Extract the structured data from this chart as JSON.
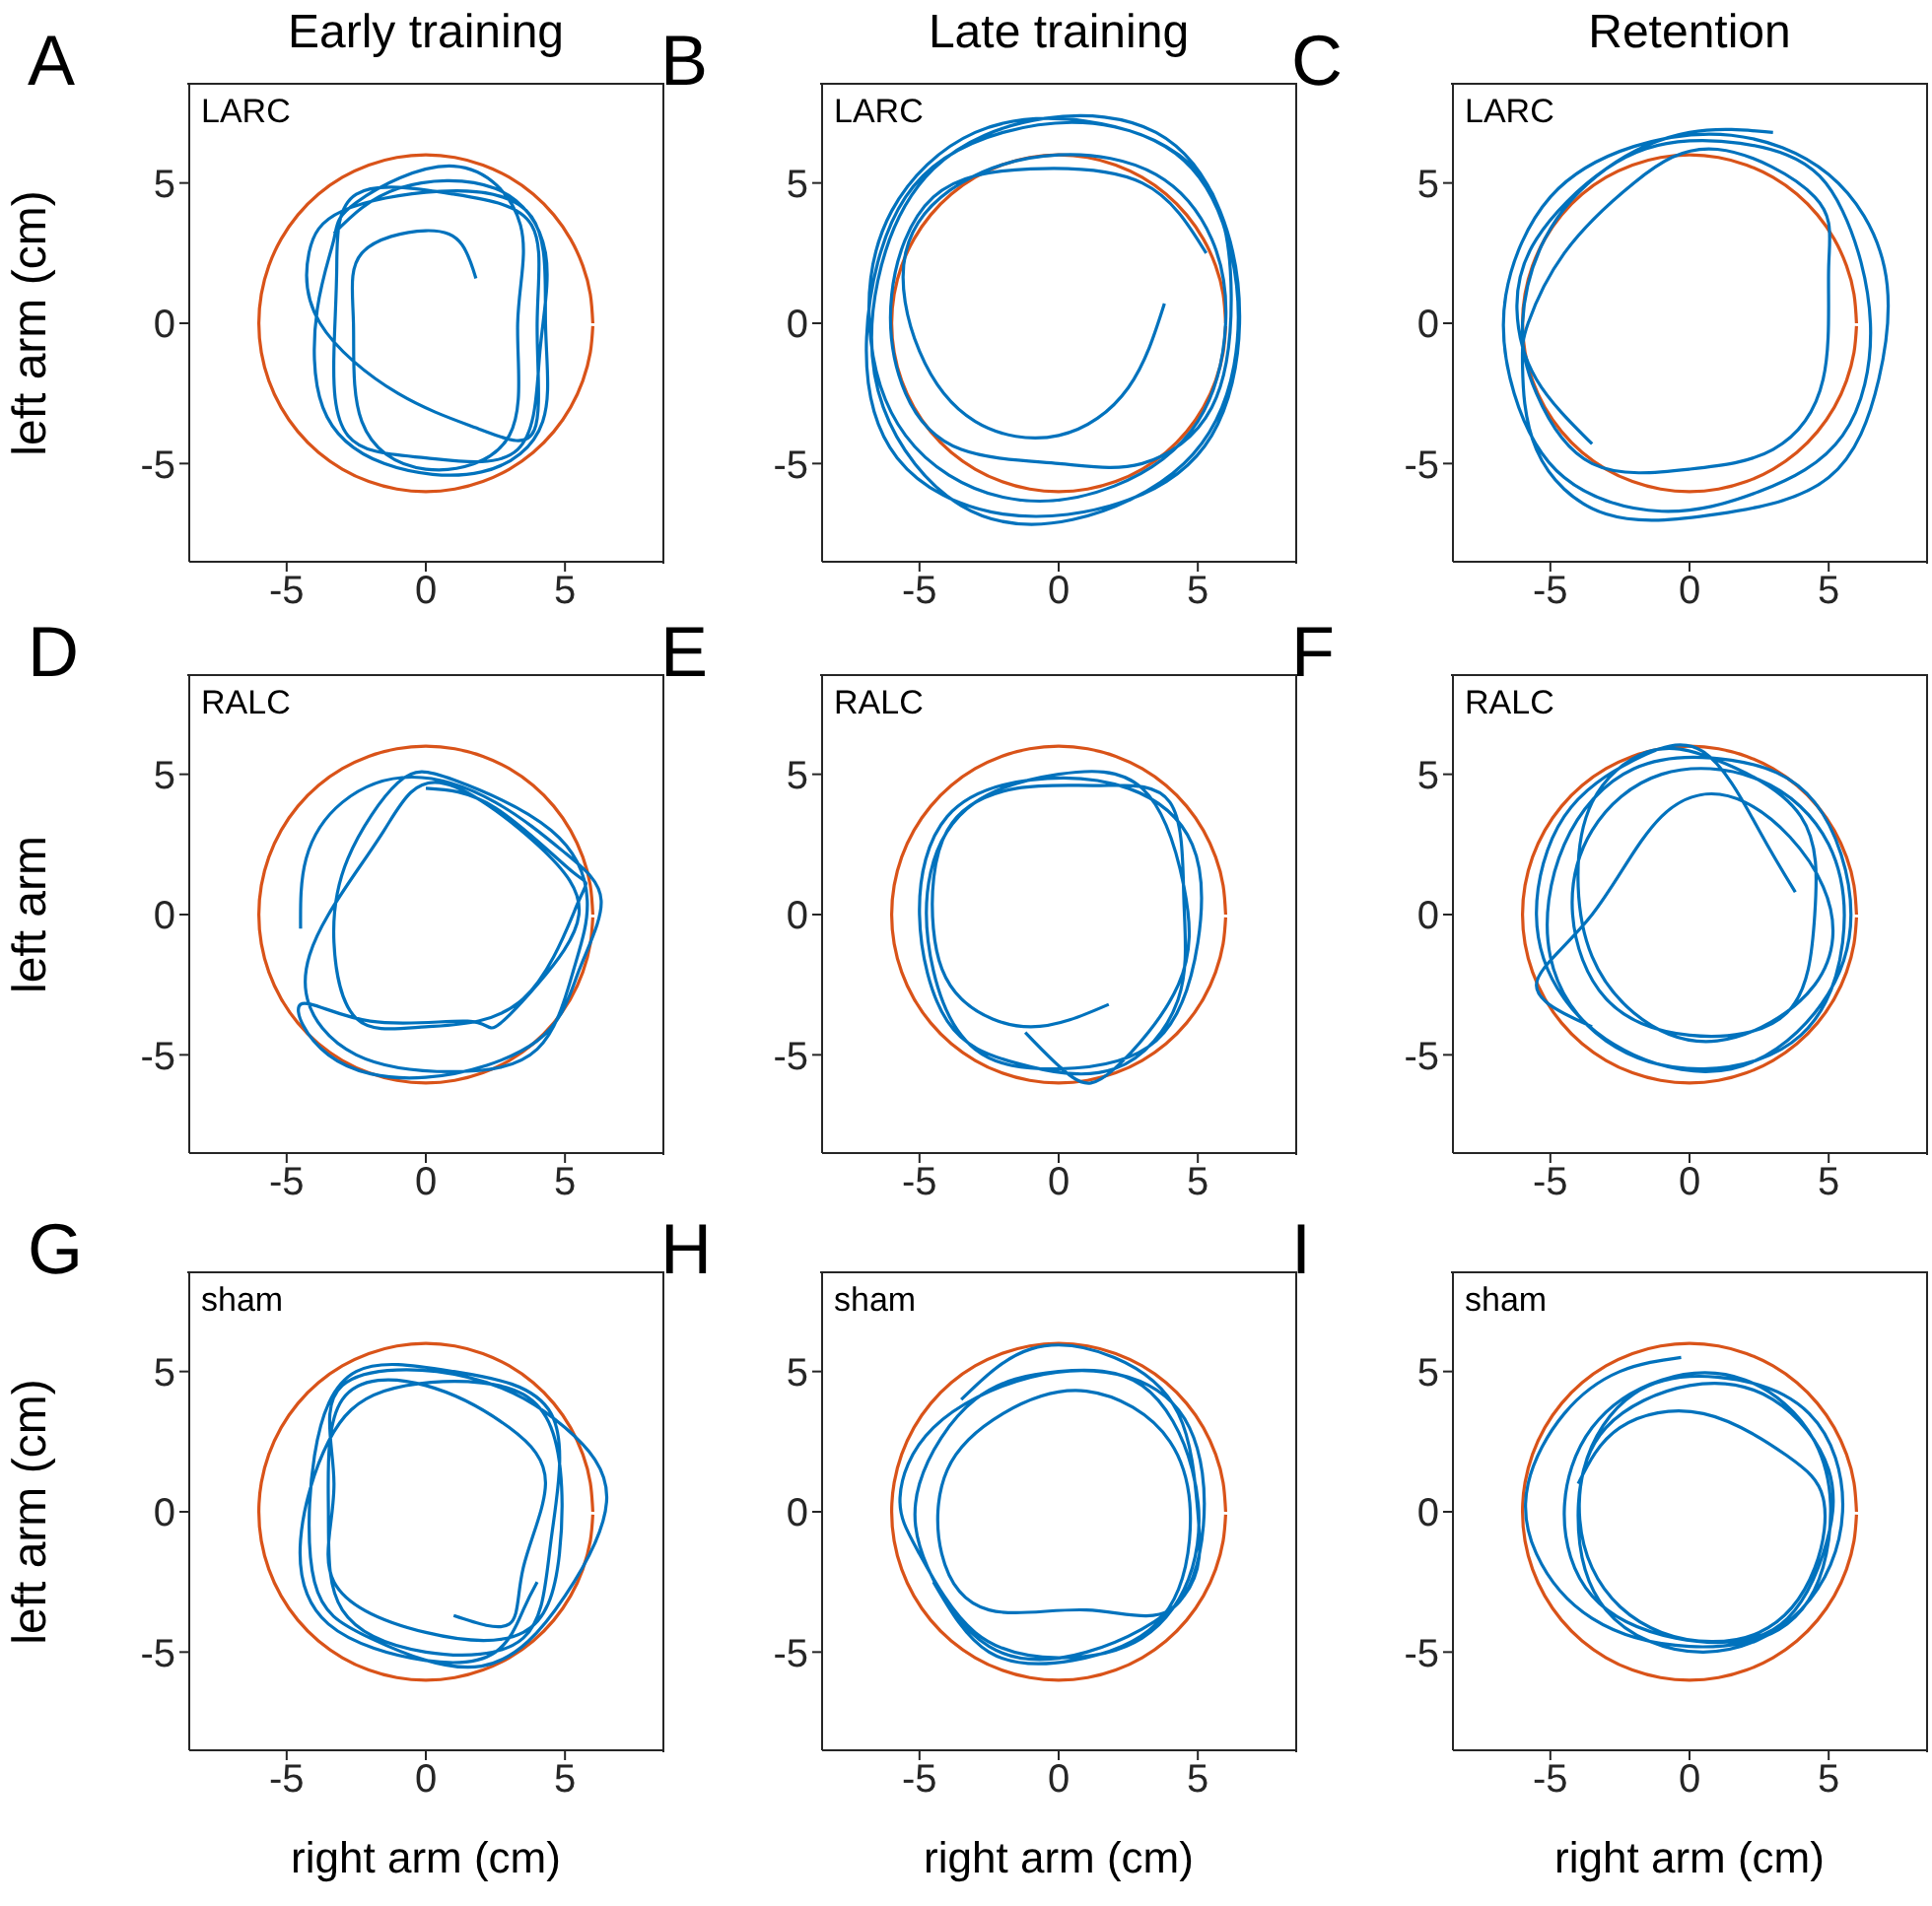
{
  "chart_data": [
    {
      "type": "line",
      "title": "Early training",
      "ylabel": "left arm (cm)",
      "annotations": [
        "A",
        "LARC"
      ],
      "xlim": [
        -8.5,
        8.5
      ],
      "ylim": [
        -8.5,
        8.5
      ],
      "xticks": [
        -5,
        0,
        5
      ],
      "yticks": [
        -5,
        0,
        5
      ],
      "series": [
        {
          "color": "#d95319",
          "x": [
            6,
            5.91,
            5.64,
            5.2,
            4.6,
            3.86,
            3,
            2.05,
            1.04,
            0,
            -1.04,
            -2.05,
            -3,
            -3.86,
            -4.6,
            -5.2,
            -5.64,
            -5.91,
            -6,
            -5.91,
            -5.64,
            -5.2,
            -4.6,
            -3.86,
            -3,
            -2.05,
            -1.04,
            0,
            1.04,
            2.05,
            3,
            3.86,
            4.6,
            5.2,
            5.64,
            5.91,
            6
          ],
          "values": [
            0,
            1.04,
            2.05,
            3,
            3.86,
            4.6,
            5.2,
            5.64,
            5.91,
            6,
            5.91,
            5.64,
            5.2,
            4.6,
            3.86,
            3,
            2.05,
            1.04,
            0,
            -1.04,
            -2.05,
            -3,
            -3.86,
            -4.6,
            -5.2,
            -5.64,
            -5.91,
            -6,
            -5.91,
            -5.64,
            -5.2,
            -4.6,
            -3.86,
            -3,
            -2.05,
            -1.04,
            -0.1
          ]
        },
        {
          "color": "#0072bd",
          "x": [
            1.8,
            1.3,
            0,
            -2.3,
            -2.6,
            -2.3,
            0,
            3,
            3.3,
            3.4,
            1,
            -2.5,
            -3.3,
            -3.9,
            -3.7,
            -1.5,
            2,
            4.2,
            4.3,
            3.8,
            0.5,
            -3,
            -4.2,
            -3.8,
            -1,
            2,
            3.9,
            4,
            3.8,
            1,
            -2.5,
            -3.2,
            -3.3,
            -2.8,
            0,
            3.3,
            4.1,
            4.3,
            2.5,
            -1,
            -3.3
          ],
          "values": [
            1.6,
            2.8,
            3.3,
            2.5,
            0,
            -3.5,
            -5.2,
            -4,
            0,
            3.5,
            5.6,
            4.3,
            3,
            0.5,
            -3,
            -5,
            -5.3,
            -3.5,
            0,
            3.8,
            4.7,
            4,
            2.5,
            0,
            -2.5,
            -3.8,
            -3.8,
            0,
            3.5,
            4.6,
            4.6,
            2,
            -1,
            -4,
            -4.8,
            -4.5,
            -1,
            2.5,
            4.8,
            4.8,
            3.2
          ]
        }
      ]
    },
    {
      "type": "line",
      "title": "Late training",
      "annotations": [
        "B",
        "LARC"
      ],
      "xlim": [
        -8.5,
        8.5
      ],
      "ylim": [
        -8.5,
        8.5
      ],
      "xticks": [
        -5,
        0,
        5
      ],
      "yticks": [
        -5,
        0,
        5
      ],
      "series": [
        {
          "color": "#d95319",
          "x": [
            6,
            5.91,
            5.64,
            5.2,
            4.6,
            3.86,
            3,
            2.05,
            1.04,
            0,
            -1.04,
            -2.05,
            -3,
            -3.86,
            -4.6,
            -5.2,
            -5.64,
            -5.91,
            -6,
            -5.91,
            -5.64,
            -5.2,
            -4.6,
            -3.86,
            -3,
            -2.05,
            -1.04,
            0,
            1.04,
            2.05,
            3,
            3.86,
            4.6,
            5.2,
            5.64,
            5.91,
            6
          ],
          "values": [
            0,
            1.04,
            2.05,
            3,
            3.86,
            4.6,
            5.2,
            5.64,
            5.91,
            6,
            5.91,
            5.64,
            5.2,
            4.6,
            3.86,
            3,
            2.05,
            1.04,
            0,
            -1.04,
            -2.05,
            -3,
            -3.86,
            -4.6,
            -5.2,
            -5.64,
            -5.91,
            -6,
            -5.91,
            -5.64,
            -5.2,
            -4.6,
            -3.86,
            -3,
            -2.05,
            -1.04,
            -0.1
          ]
        },
        {
          "color": "#0072bd",
          "x": [
            3.8,
            2.5,
            0,
            -3,
            -5,
            -5.5,
            -3.5,
            0,
            3.5,
            5.5,
            6,
            5,
            2,
            -2,
            -5.5,
            -6.8,
            -6,
            -3,
            1,
            4.5,
            6.2,
            6.3,
            4.5,
            0.5,
            -3.5,
            -6.3,
            -6.5,
            -4.5,
            -0.5,
            3.5,
            5.8,
            6.5,
            5.5,
            2.5,
            -2,
            -5.8,
            -6.9,
            -5.5,
            -2,
            2,
            5.3,
            6.2,
            5.5,
            3,
            0,
            -3.5,
            -5.5,
            -6,
            -4.5,
            -1,
            3,
            5.3
          ],
          "values": [
            0.7,
            -2.3,
            -4,
            -3.5,
            -1,
            2.5,
            5,
            6,
            5.3,
            3,
            0,
            -3.5,
            -5.8,
            -6.2,
            -4,
            0,
            4,
            6.8,
            7.2,
            5.8,
            2.5,
            -1.5,
            -5,
            -7,
            -6.5,
            -3,
            1.5,
            5.5,
            7.3,
            6.8,
            4,
            0,
            -4,
            -6.3,
            -6.8,
            -4.8,
            -0.5,
            4.5,
            6.8,
            7,
            5,
            1,
            -3,
            -5,
            -5,
            -4.5,
            -2.5,
            1,
            4.5,
            5.5,
            5,
            2.5
          ]
        }
      ]
    },
    {
      "type": "line",
      "title": "Retention",
      "annotations": [
        "C",
        "LARC"
      ],
      "xlim": [
        -8.5,
        8.5
      ],
      "ylim": [
        -8.5,
        8.5
      ],
      "xticks": [
        -5,
        0,
        5
      ],
      "yticks": [
        -5,
        0,
        5
      ],
      "series": [
        {
          "color": "#d95319",
          "x": [
            6,
            5.91,
            5.64,
            5.2,
            4.6,
            3.86,
            3,
            2.05,
            1.04,
            0,
            -1.04,
            -2.05,
            -3,
            -3.86,
            -4.6,
            -5.2,
            -5.64,
            -5.91,
            -6,
            -5.91,
            -5.64,
            -5.2,
            -4.6,
            -3.86,
            -3,
            -2.05,
            -1.04,
            0,
            1.04,
            2.05,
            3,
            3.86,
            4.6,
            5.2,
            5.64,
            5.91,
            6
          ],
          "values": [
            0,
            1.04,
            2.05,
            3,
            3.86,
            4.6,
            5.2,
            5.64,
            5.91,
            6,
            5.91,
            5.64,
            5.2,
            4.6,
            3.86,
            3,
            2.05,
            1.04,
            0,
            -1.04,
            -2.05,
            -3,
            -3.86,
            -4.6,
            -5.2,
            -5.64,
            -5.91,
            -6,
            -5.91,
            -5.64,
            -5.2,
            -4.6,
            -3.86,
            -3,
            -2.05,
            -1.04,
            -0.1
          ]
        },
        {
          "color": "#0072bd",
          "x": [
            -3.5,
            -5.5,
            -6.2,
            -5.5,
            -3,
            0,
            3.5,
            5.5,
            6.5,
            5.5,
            2.5,
            -1,
            -4.5,
            -6.3,
            -6.6,
            -5,
            -2,
            1.5,
            5,
            7,
            6.8,
            5,
            1,
            -3,
            -5.5,
            -6,
            -5.8,
            -4.5,
            -2,
            1,
            4.5,
            5,
            4.8,
            3,
            0,
            -3.5,
            -5.5,
            -6,
            -5.2,
            -3,
            0,
            3
          ],
          "values": [
            -4.3,
            -2,
            0.5,
            3,
            5.5,
            6.5,
            6,
            4,
            0,
            -4,
            -6,
            -6.7,
            -5.5,
            -2.5,
            1,
            4.5,
            6.3,
            6.7,
            5.3,
            2,
            -2,
            -5.5,
            -6.8,
            -6.8,
            -4.5,
            -1.5,
            0,
            2.5,
            5,
            6.2,
            4.5,
            2,
            -2,
            -4.5,
            -5.2,
            -5,
            -2.5,
            0,
            3,
            5.5,
            6.8,
            6.8
          ]
        }
      ]
    },
    {
      "type": "line",
      "ylabel": "left arm",
      "annotations": [
        "D",
        "RALC"
      ],
      "xlim": [
        -8.5,
        8.5
      ],
      "ylim": [
        -8.5,
        8.5
      ],
      "xticks": [
        -5,
        0,
        5
      ],
      "yticks": [
        -5,
        0,
        5
      ],
      "series": [
        {
          "color": "#d95319",
          "x": [
            6,
            5.91,
            5.64,
            5.2,
            4.6,
            3.86,
            3,
            2.05,
            1.04,
            0,
            -1.04,
            -2.05,
            -3,
            -3.86,
            -4.6,
            -5.2,
            -5.64,
            -5.91,
            -6,
            -5.91,
            -5.64,
            -5.2,
            -4.6,
            -3.86,
            -3,
            -2.05,
            -1.04,
            0,
            1.04,
            2.05,
            3,
            3.86,
            4.6,
            5.2,
            5.64,
            5.91,
            6
          ],
          "values": [
            0,
            1.04,
            2.05,
            3,
            3.86,
            4.6,
            5.2,
            5.64,
            5.91,
            6,
            5.91,
            5.64,
            5.2,
            4.6,
            3.86,
            3,
            2.05,
            1.04,
            0,
            -1.04,
            -2.05,
            -3,
            -3.86,
            -4.6,
            -5.2,
            -5.64,
            -5.91,
            -6,
            -5.91,
            -5.64,
            -5.2,
            -4.6,
            -3.86,
            -3,
            -2.05,
            -1.04,
            -0.1
          ]
        },
        {
          "color": "#0072bd",
          "x": [
            -4.5,
            -4.3,
            -3,
            -0.5,
            2.5,
            5,
            6.3,
            5.5,
            4,
            0,
            -3.5,
            -4.5,
            -2,
            1.5,
            2.5,
            4,
            5.5,
            4,
            0.5,
            -1.5,
            -3.5,
            -4.3,
            -2.5,
            1,
            4,
            5.3,
            5.8,
            4.5,
            1,
            -1,
            -2.8,
            -3.3,
            -2.5,
            0,
            3.5,
            5.5,
            5.3,
            2.5,
            0
          ],
          "values": [
            -0.5,
            2,
            4,
            4.9,
            4,
            2.2,
            0.5,
            -2,
            -4.5,
            -5.8,
            -5,
            -3.2,
            -3.8,
            -3.8,
            -4,
            -2.5,
            0,
            2.5,
            4.7,
            3,
            0,
            -2.8,
            -5,
            -5.6,
            -4.8,
            -2,
            0.5,
            3,
            4.8,
            4.7,
            2,
            -1,
            -3.7,
            -4,
            -3,
            0.5,
            1.5,
            3.8,
            4.5
          ]
        }
      ]
    },
    {
      "type": "line",
      "annotations": [
        "E",
        "RALC"
      ],
      "xlim": [
        -8.5,
        8.5
      ],
      "ylim": [
        -8.5,
        8.5
      ],
      "xticks": [
        -5,
        0,
        5
      ],
      "yticks": [
        -5,
        0,
        5
      ],
      "series": [
        {
          "color": "#d95319",
          "x": [
            6,
            5.91,
            5.64,
            5.2,
            4.6,
            3.86,
            3,
            2.05,
            1.04,
            0,
            -1.04,
            -2.05,
            -3,
            -3.86,
            -4.6,
            -5.2,
            -5.64,
            -5.91,
            -6,
            -5.91,
            -5.64,
            -5.2,
            -4.6,
            -3.86,
            -3,
            -2.05,
            -1.04,
            0,
            1.04,
            2.05,
            3,
            3.86,
            4.6,
            5.2,
            5.64,
            5.91,
            6
          ],
          "values": [
            0,
            1.04,
            2.05,
            3,
            3.86,
            4.6,
            5.2,
            5.64,
            5.91,
            6,
            5.91,
            5.64,
            5.2,
            4.6,
            3.86,
            3,
            2.05,
            1.04,
            0,
            -1.04,
            -2.05,
            -3,
            -3.86,
            -4.6,
            -5.2,
            -5.64,
            -5.91,
            -6,
            -5.91,
            -5.64,
            -5.2,
            -4.6,
            -3.86,
            -3,
            -2.05,
            -1.04,
            -0.1
          ]
        },
        {
          "color": "#0072bd",
          "x": [
            1.8,
            -1,
            -3.5,
            -4.5,
            -4,
            -1.5,
            1.5,
            4,
            4.5,
            4.3,
            2,
            -1.5,
            -4,
            -5,
            -4,
            -1,
            2.5,
            4.8,
            5,
            3.5,
            0,
            -3,
            -4.5,
            -4.6,
            -3,
            0,
            3,
            4.5,
            4.3,
            2,
            0.5,
            -1.2
          ],
          "values": [
            -3.2,
            -4,
            -3,
            -0.5,
            3,
            4.5,
            4.6,
            4,
            0.5,
            -3,
            -5.5,
            -5.3,
            -3.8,
            0,
            3.5,
            4.8,
            4.5,
            2.5,
            -1,
            -4.5,
            -5.5,
            -4.8,
            -2,
            1.5,
            4,
            5,
            4.5,
            1,
            -2.5,
            -5.5,
            -5.8,
            -4.2
          ]
        }
      ]
    },
    {
      "type": "line",
      "annotations": [
        "F",
        "RALC"
      ],
      "xlim": [
        -8.5,
        8.5
      ],
      "ylim": [
        -8.5,
        8.5
      ],
      "xticks": [
        -5,
        0,
        5
      ],
      "yticks": [
        -5,
        0,
        5
      ],
      "series": [
        {
          "color": "#d95319",
          "x": [
            6,
            5.91,
            5.64,
            5.2,
            4.6,
            3.86,
            3,
            2.05,
            1.04,
            0,
            -1.04,
            -2.05,
            -3,
            -3.86,
            -4.6,
            -5.2,
            -5.64,
            -5.91,
            -6,
            -5.91,
            -5.64,
            -5.2,
            -4.6,
            -3.86,
            -3,
            -2.05,
            -1.04,
            0,
            1.04,
            2.05,
            3,
            3.86,
            4.6,
            5.2,
            5.64,
            5.91,
            6
          ],
          "values": [
            0,
            1.04,
            2.05,
            3,
            3.86,
            4.6,
            5.2,
            5.64,
            5.91,
            6,
            5.91,
            5.64,
            5.2,
            4.6,
            3.86,
            3,
            2.05,
            1.04,
            0,
            -1.04,
            -2.05,
            -3,
            -3.86,
            -4.6,
            -5.2,
            -5.64,
            -5.91,
            -6,
            -5.91,
            -5.64,
            -5.2,
            -4.6,
            -3.86,
            -3,
            -2.05,
            -1.04,
            -0.1
          ]
        },
        {
          "color": "#0072bd",
          "x": [
            3.8,
            2.5,
            0.5,
            -2,
            -4.5,
            -5.5,
            -4.5,
            -2,
            1.5,
            4.5,
            5.8,
            4.5,
            1.5,
            -2,
            -4.5,
            -5,
            -3,
            0.5,
            4,
            5.5,
            5,
            2.5,
            -1,
            -3.5,
            -4.2,
            -3,
            0,
            3.5,
            4.5,
            4,
            1,
            -1.5,
            -3.5,
            -4,
            -3.5,
            -2,
            1,
            4.5,
            4.8,
            2,
            -1,
            -3.5,
            -5.5,
            -3.5
          ],
          "values": [
            0.8,
            3,
            5.8,
            5.5,
            3.5,
            0,
            -3,
            -5,
            -5.5,
            -3.5,
            0,
            4,
            5.5,
            5.2,
            2.5,
            -1.5,
            -4.5,
            -5.5,
            -4.3,
            -1,
            2.5,
            4.8,
            5,
            3,
            0,
            -3,
            -4.3,
            -3.5,
            0,
            3.5,
            5.5,
            5.8,
            4,
            1,
            -1.5,
            -3.5,
            -4.5,
            -2.5,
            1,
            4,
            3.5,
            0,
            -2.5,
            -4
          ]
        }
      ]
    },
    {
      "type": "line",
      "xlabel": "right arm (cm)",
      "ylabel": "left arm (cm)",
      "annotations": [
        "G",
        "sham"
      ],
      "xlim": [
        -8.5,
        8.5
      ],
      "ylim": [
        -8.5,
        8.5
      ],
      "xticks": [
        -5,
        0,
        5
      ],
      "yticks": [
        -5,
        0,
        5
      ],
      "series": [
        {
          "color": "#d95319",
          "x": [
            6,
            5.91,
            5.64,
            5.2,
            4.6,
            3.86,
            3,
            2.05,
            1.04,
            0,
            -1.04,
            -2.05,
            -3,
            -3.86,
            -4.6,
            -5.2,
            -5.64,
            -5.91,
            -6,
            -5.91,
            -5.64,
            -5.2,
            -4.6,
            -3.86,
            -3,
            -2.05,
            -1.04,
            0,
            1.04,
            2.05,
            3,
            3.86,
            4.6,
            5.2,
            5.64,
            5.91,
            6
          ],
          "values": [
            0,
            1.04,
            2.05,
            3,
            3.86,
            4.6,
            5.2,
            5.64,
            5.91,
            6,
            5.91,
            5.64,
            5.2,
            4.6,
            3.86,
            3,
            2.05,
            1.04,
            0,
            -1.04,
            -2.05,
            -3,
            -3.86,
            -4.6,
            -5.2,
            -5.64,
            -5.91,
            -6,
            -5.91,
            -5.64,
            -5.2,
            -4.6,
            -3.86,
            -3,
            -2.05,
            -1.04,
            -0.1
          ]
        },
        {
          "color": "#0072bd",
          "x": [
            1,
            3,
            3.5,
            4.3,
            3,
            0,
            -3,
            -3.5,
            -3,
            0,
            3.5,
            4.5,
            4.5,
            1,
            -2.5,
            -4,
            -4,
            -2,
            2,
            5,
            6.5,
            5,
            1.5,
            -3,
            -3.3,
            -3.3,
            0,
            3.5,
            4.8,
            4.5,
            2,
            -1.5,
            -3.5,
            -4.5,
            -3.5,
            0,
            2.5,
            3.5,
            4
          ],
          "values": [
            -3.7,
            -4,
            -2,
            1,
            3,
            4.5,
            4,
            0,
            -3.5,
            -5,
            -4.5,
            -1,
            3.5,
            5,
            5,
            2,
            -2.5,
            -4.5,
            -5.5,
            -3,
            0.5,
            3,
            4.8,
            4.5,
            1,
            -2.5,
            -4.3,
            -4.3,
            -1.5,
            3,
            4.6,
            4.3,
            2.5,
            -1,
            -4,
            -5.3,
            -5,
            -3.5,
            -2.5
          ]
        }
      ]
    },
    {
      "type": "line",
      "xlabel": "right arm (cm)",
      "annotations": [
        "H",
        "sham"
      ],
      "xlim": [
        -8.5,
        8.5
      ],
      "ylim": [
        -8.5,
        8.5
      ],
      "xticks": [
        -5,
        0,
        5
      ],
      "yticks": [
        -5,
        0,
        5
      ],
      "series": [
        {
          "color": "#d95319",
          "x": [
            6,
            5.91,
            5.64,
            5.2,
            4.6,
            3.86,
            3,
            2.05,
            1.04,
            0,
            -1.04,
            -2.05,
            -3,
            -3.86,
            -4.6,
            -5.2,
            -5.64,
            -5.91,
            -6,
            -5.91,
            -5.64,
            -5.2,
            -4.6,
            -3.86,
            -3,
            -2.05,
            -1.04,
            0,
            1.04,
            2.05,
            3,
            3.86,
            4.6,
            5.2,
            5.64,
            5.91,
            6
          ],
          "values": [
            0,
            1.04,
            2.05,
            3,
            3.86,
            4.6,
            5.2,
            5.64,
            5.91,
            6,
            5.91,
            5.64,
            5.2,
            4.6,
            3.86,
            3,
            2.05,
            1.04,
            0,
            -1.04,
            -2.05,
            -3,
            -3.86,
            -4.6,
            -5.2,
            -5.64,
            -5.91,
            -6,
            -5.91,
            -5.64,
            -5.2,
            -4.6,
            -3.86,
            -3,
            -2.05,
            -1.04,
            -0.1
          ]
        },
        {
          "color": "#0072bd",
          "x": [
            -3.5,
            -1,
            2,
            4.3,
            5,
            4.5,
            1,
            -2.5,
            -4.7,
            -5,
            -3,
            0,
            3,
            4.8,
            4.8,
            3,
            0,
            -3,
            -5,
            -5.7,
            -4.5,
            -1,
            2.5,
            4.7,
            5.2,
            4,
            1,
            -2.5,
            -4.2,
            -4,
            -2,
            1,
            4,
            4.7,
            3.5,
            0.5,
            -2.5,
            -4.5
          ],
          "values": [
            4,
            5.8,
            5.5,
            3.5,
            0,
            -3,
            -5,
            -4.8,
            -2,
            1,
            4,
            5,
            4.5,
            1.5,
            -2,
            -4.5,
            -5.2,
            -4.3,
            -1.5,
            0.5,
            3,
            4.8,
            4.8,
            3,
            -0.5,
            -3.5,
            -3.5,
            -3.5,
            -1.5,
            1.5,
            3.5,
            4.3,
            2.5,
            -1,
            -4,
            -5.3,
            -5,
            -2.5
          ]
        }
      ]
    },
    {
      "type": "line",
      "xlabel": "right arm (cm)",
      "annotations": [
        "I",
        "sham"
      ],
      "xlim": [
        -8.5,
        8.5
      ],
      "ylim": [
        -8.5,
        8.5
      ],
      "xticks": [
        -5,
        0,
        5
      ],
      "yticks": [
        -5,
        0,
        5
      ],
      "series": [
        {
          "color": "#d95319",
          "x": [
            6,
            5.91,
            5.64,
            5.2,
            4.6,
            3.86,
            3,
            2.05,
            1.04,
            0,
            -1.04,
            -2.05,
            -3,
            -3.86,
            -4.6,
            -5.2,
            -5.64,
            -5.91,
            -6,
            -5.91,
            -5.64,
            -5.2,
            -4.6,
            -3.86,
            -3,
            -2.05,
            -1.04,
            0,
            1.04,
            2.05,
            3,
            3.86,
            4.6,
            5.2,
            5.64,
            5.91,
            6
          ],
          "values": [
            0,
            1.04,
            2.05,
            3,
            3.86,
            4.6,
            5.2,
            5.64,
            5.91,
            6,
            5.91,
            5.64,
            5.2,
            4.6,
            3.86,
            3,
            2.05,
            1.04,
            0,
            -1.04,
            -2.05,
            -3,
            -3.86,
            -4.6,
            -5.2,
            -5.64,
            -5.91,
            -6,
            -5.91,
            -5.64,
            -5.2,
            -4.6,
            -3.86,
            -3,
            -2.05,
            -1.04,
            -0.1
          ]
        },
        {
          "color": "#0072bd",
          "x": [
            -0.3,
            -2.5,
            -4.5,
            -5.8,
            -5.5,
            -3.5,
            0,
            3.5,
            5,
            4.5,
            2,
            -1,
            -3.5,
            -4.5,
            -3.5,
            -0.5,
            3,
            4.8,
            5,
            3,
            0,
            -3,
            -4,
            -3,
            0.5,
            4,
            5.5,
            4.3,
            1,
            -2,
            -3.8,
            -3.5,
            -1,
            2.5,
            4.5,
            4.8,
            3.5,
            0.5,
            -2.5,
            -4
          ],
          "values": [
            5.5,
            5,
            3.5,
            1,
            -1.5,
            -3.8,
            -4.8,
            -4,
            -1,
            2.5,
            4.7,
            4.7,
            3,
            0,
            -3,
            -4.5,
            -4.2,
            -1.5,
            1.5,
            4,
            4.5,
            3,
            0,
            -3.5,
            -5,
            -3.5,
            0,
            3.5,
            4.8,
            4.2,
            1.5,
            -2,
            -4.3,
            -4.3,
            -2,
            0.5,
            2,
            3.5,
            3,
            1
          ]
        }
      ]
    }
  ]
}
